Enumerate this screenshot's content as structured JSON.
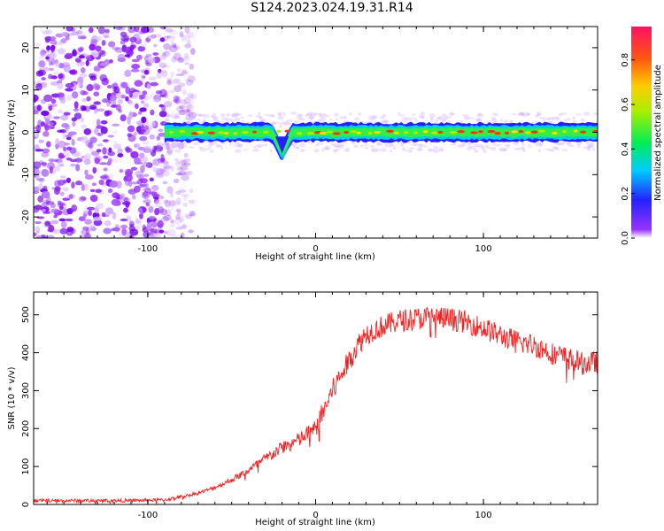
{
  "title": "S124.2023.024.19.31.R14",
  "chart_data": [
    {
      "type": "heatmap",
      "xlabel": "Height of straight line (km)",
      "ylabel": "Frequency (Hz)",
      "xlim": [
        -168,
        168
      ],
      "ylim": [
        -25,
        25
      ],
      "xticks": [
        -100,
        0,
        100
      ],
      "yticks": [
        -20,
        -10,
        0,
        10,
        20
      ],
      "colorbar": {
        "label": "Normalized spectral amplitude",
        "range": [
          0,
          0.95
        ],
        "ticks": [
          0.0,
          0.2,
          0.4,
          0.6,
          0.8
        ]
      },
      "features": {
        "noise_region_x": [
          -168,
          -90
        ],
        "carrier_start_x": -90,
        "carrier_frequency": 0,
        "dip": {
          "x": -20,
          "frequency": -5
        }
      }
    },
    {
      "type": "line",
      "xlabel": "Height of straight line (km)",
      "ylabel": "SNR (10 * v/v)",
      "xlim": [
        -168,
        168
      ],
      "ylim": [
        0,
        560
      ],
      "xticks": [
        -100,
        0,
        100
      ],
      "yticks": [
        0,
        100,
        200,
        300,
        400,
        500
      ],
      "series": [
        {
          "color": "#ee2222",
          "x": [
            -168,
            -140,
            -110,
            -90,
            -80,
            -70,
            -60,
            -50,
            -40,
            -30,
            -20,
            -10,
            0,
            5,
            10,
            15,
            20,
            25,
            30,
            40,
            50,
            60,
            70,
            80,
            90,
            100,
            110,
            120,
            130,
            140,
            150,
            160,
            168
          ],
          "values": [
            10,
            10,
            10,
            12,
            20,
            30,
            45,
            65,
            90,
            120,
            150,
            170,
            200,
            250,
            300,
            340,
            380,
            420,
            450,
            470,
            485,
            490,
            495,
            490,
            480,
            465,
            445,
            430,
            420,
            400,
            385,
            370,
            375
          ],
          "noise_amplitude": 30
        }
      ]
    }
  ]
}
